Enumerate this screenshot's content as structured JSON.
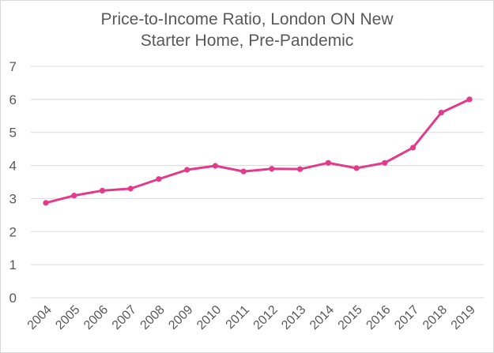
{
  "chart_data": {
    "type": "line",
    "title_line1": "Price-to-Income Ratio, London ON New",
    "title_line2": "Starter Home, Pre-Pandemic",
    "xlabel": "",
    "ylabel": "",
    "categories": [
      "2004",
      "2005",
      "2006",
      "2007",
      "2008",
      "2009",
      "2010",
      "2011",
      "2012",
      "2013",
      "2014",
      "2015",
      "2016",
      "2017",
      "2018",
      "2019"
    ],
    "series": [
      {
        "values": [
          2.87,
          3.09,
          3.24,
          3.3,
          3.59,
          3.87,
          3.99,
          3.82,
          3.9,
          3.89,
          4.08,
          3.92,
          4.08,
          4.54,
          5.6,
          6.0
        ]
      }
    ],
    "ylim": [
      0,
      7
    ],
    "yticks": [
      "0",
      "1",
      "2",
      "3",
      "4",
      "5",
      "6",
      "7"
    ],
    "grid": true,
    "colors": {
      "line": "#e23b8c",
      "grid": "#d9d9d9",
      "text": "#595959"
    }
  }
}
